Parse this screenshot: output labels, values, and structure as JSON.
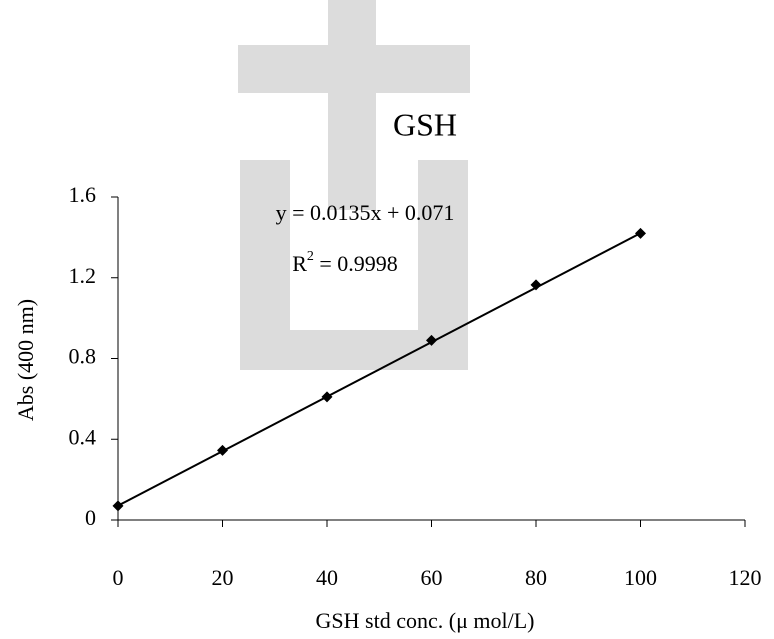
{
  "chart_data": {
    "type": "scatter",
    "title": "GSH",
    "x_label": "GSH std conc. (μ mol/L)",
    "y_label": "Abs (400 nm)",
    "x": [
      0,
      20,
      40,
      60,
      80,
      100
    ],
    "values": [
      0.07,
      0.345,
      0.61,
      0.89,
      1.165,
      1.42
    ],
    "color": "#000000",
    "xlim": [
      0,
      120
    ],
    "xticks": [
      0,
      20,
      40,
      60,
      80,
      100,
      120
    ],
    "ylim": [
      0,
      1.6
    ],
    "yticks": [
      0,
      0.4,
      0.8,
      1.2,
      1.6
    ],
    "trendline": {
      "slope": 0.0135,
      "intercept": 0.071,
      "color": "#000000"
    },
    "equation": "y = 0.0135x + 0.071",
    "r_squared": {
      "symbol": "R",
      "exponent": "2",
      "text": " = 0.9998"
    }
  }
}
